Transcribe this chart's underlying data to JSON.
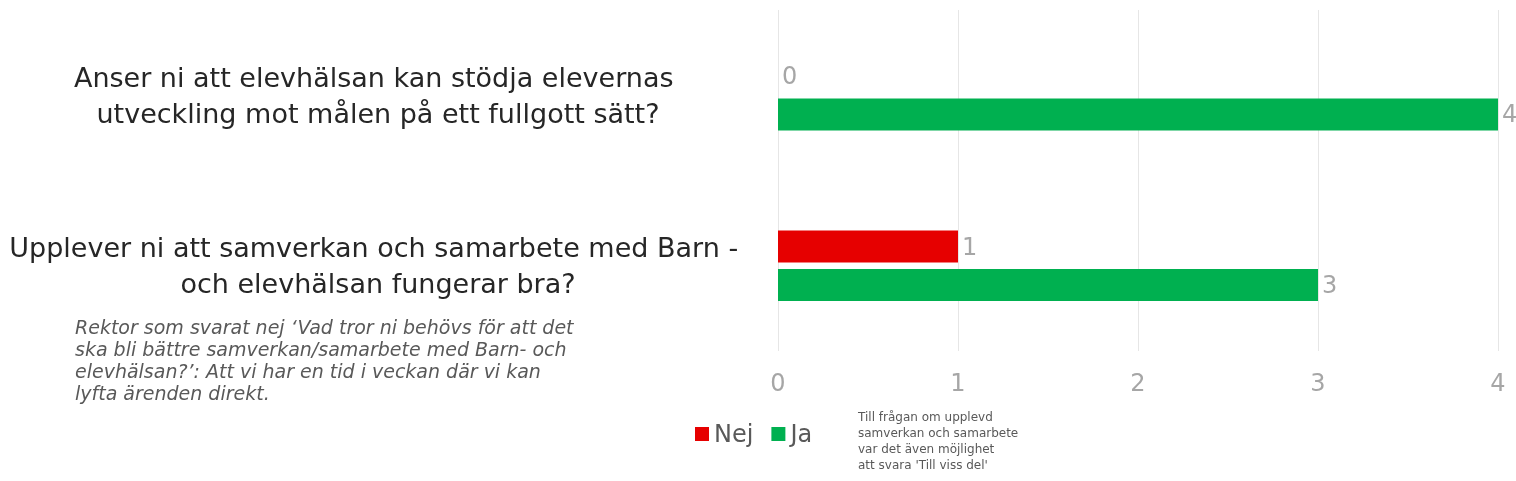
{
  "chart_data": {
    "type": "bar",
    "orientation": "horizontal",
    "categories": [
      "Anser ni att elevhälsan kan stödja elevernas utveckling mot målen på ett fullgott sätt?",
      "Upplever ni att samverkan och samarbete med Barn - och elevhälsan fungerar bra?"
    ],
    "series": [
      {
        "name": "Nej",
        "color": "#e60000",
        "values": [
          0,
          1
        ]
      },
      {
        "name": "Ja",
        "color": "#00b050",
        "values": [
          4,
          3
        ]
      }
    ],
    "xlim": [
      0,
      4
    ],
    "xticks": [
      0,
      1,
      2,
      3,
      4
    ],
    "grid": "x",
    "legend": "bottom",
    "data_labels": true,
    "annotations": [
      "Rektor som svarat nej ‘Vad tror ni behövs för att det ska bli bättre samverkan/samarbete med Barn- och elevhälsan?’: Att vi har en tid i veckan där vi kan lyfta ärenden direkt.",
      "Till frågan om upplevd samverkan och samarbete var det även möjlighet att svara 'Till viss del'"
    ]
  }
}
